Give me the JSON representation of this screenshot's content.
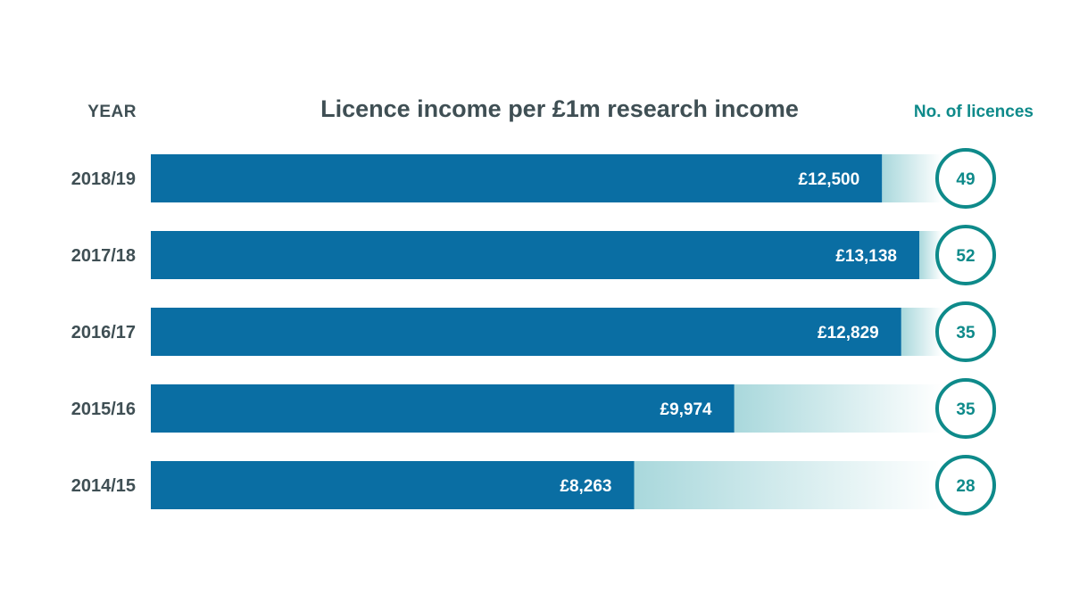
{
  "colors": {
    "bar": "#0a6ea3",
    "teal": "#0e8a8a",
    "fade_start": "#a9d8dc",
    "fade_end": "#ffffff",
    "text_dark": "#3f4f54",
    "text_light": "#ffffff"
  },
  "chart_data": {
    "type": "bar",
    "orientation": "horizontal",
    "title": "Licence income per £1m research income",
    "category_header": "YEAR",
    "secondary_header": "No. of licences",
    "categories": [
      "2018/19",
      "2017/18",
      "2016/17",
      "2015/16",
      "2014/15"
    ],
    "series": [
      {
        "name": "Licence income per £1m research income",
        "values": [
          12500,
          13138,
          12829,
          9974,
          8263
        ],
        "labels": [
          "£12,500",
          "£13,138",
          "£12,829",
          "£9,974",
          "£8,263"
        ]
      },
      {
        "name": "No. of licences",
        "values": [
          49,
          52,
          35,
          35,
          28
        ],
        "labels": [
          "49",
          "52",
          "35",
          "35",
          "28"
        ]
      }
    ],
    "xlim": [
      0,
      13138
    ],
    "grid": false,
    "legend": "none"
  }
}
